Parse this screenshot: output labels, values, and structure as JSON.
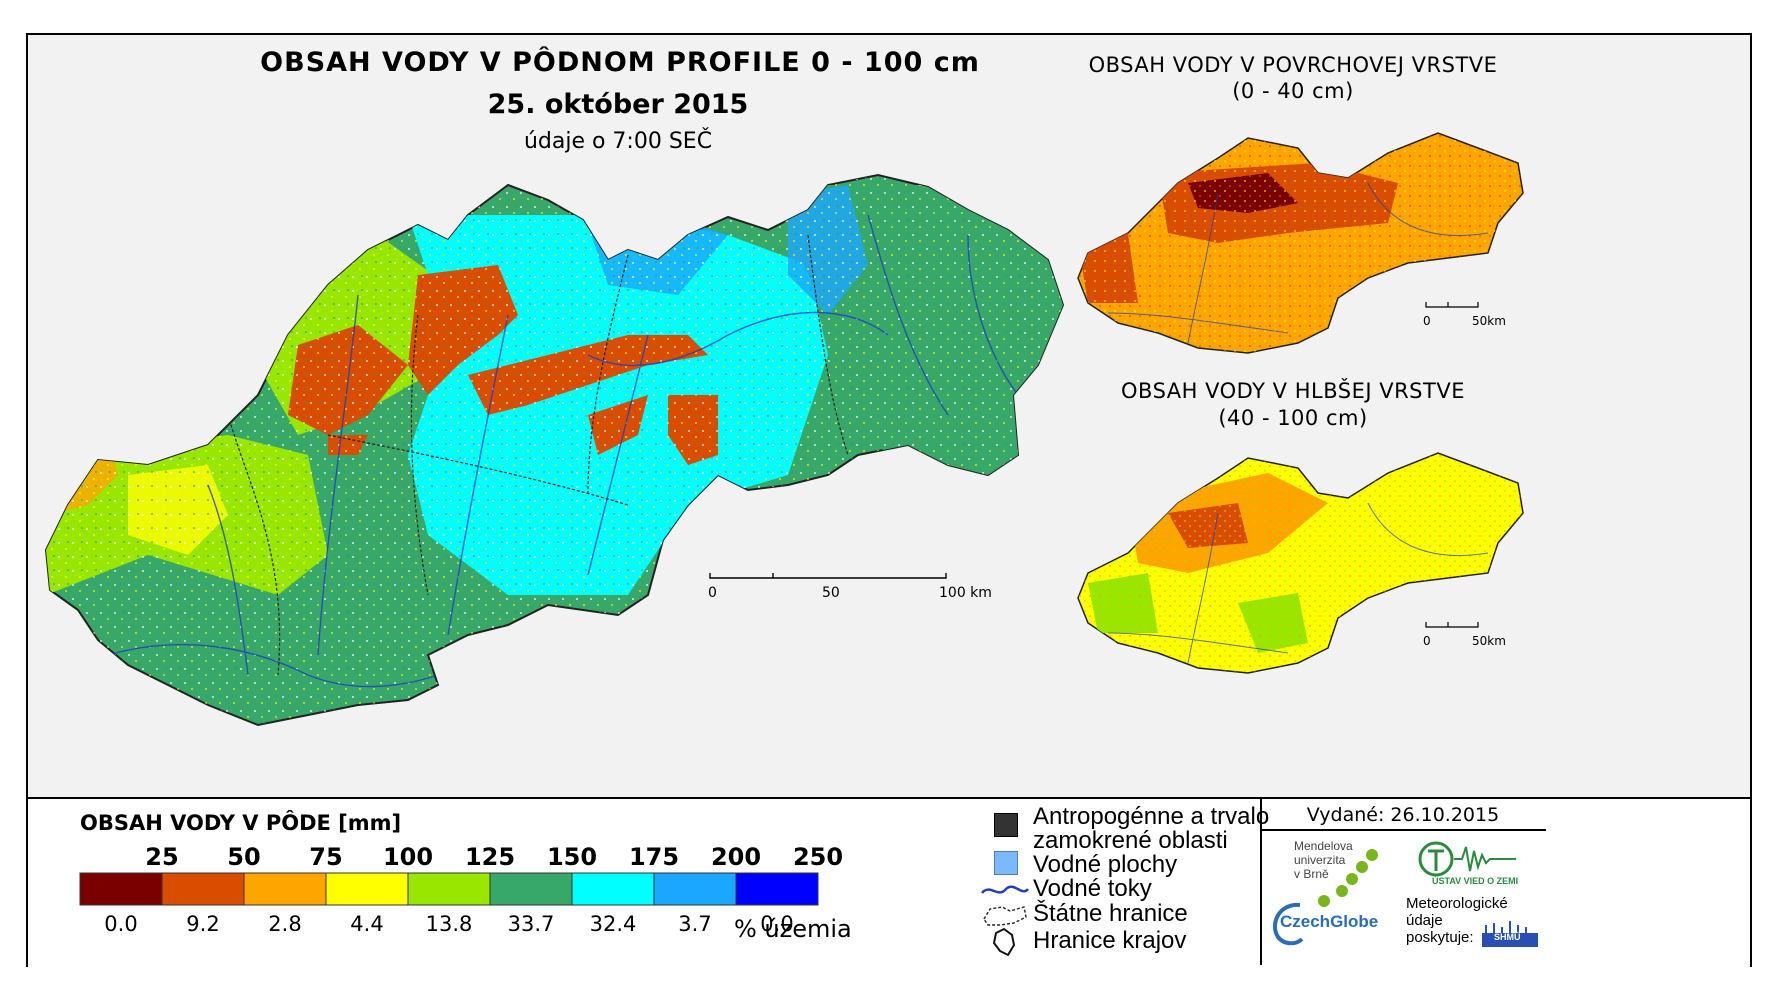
{
  "main_map": {
    "title": "OBSAH VODY V PÔDNOM PROFILE 0 - 100 cm",
    "date": "25. október 2015",
    "time_note": "údaje o 7:00 SEČ",
    "scale": {
      "zero": "0",
      "mid": "50",
      "end": "100 km"
    }
  },
  "inset_top": {
    "title_line1": "OBSAH VODY V POVRCHOVEJ VRSTVE",
    "title_line2": "(0 - 40 cm)",
    "scale": {
      "zero": "0",
      "end": "50km"
    }
  },
  "inset_bottom": {
    "title_line1": "OBSAH VODY V HLBŠEJ VRSTVE",
    "title_line2": "(40 - 100 cm)",
    "scale": {
      "zero": "0",
      "end": "50km"
    }
  },
  "chart_data": {
    "type": "choropleth-legend",
    "title": "OBSAH VODY V PÔDE [mm]",
    "class_breaks": [
      "25",
      "50",
      "75",
      "100",
      "125",
      "150",
      "175",
      "200",
      "250"
    ],
    "classes": [
      {
        "color": "#7a0000",
        "percent": "0.0"
      },
      {
        "color": "#d84d00",
        "percent": "9.2"
      },
      {
        "color": "#ffa500",
        "percent": "2.8"
      },
      {
        "color": "#ffff00",
        "percent": "4.4"
      },
      {
        "color": "#99e600",
        "percent": "13.8"
      },
      {
        "color": "#38a86a",
        "percent": "33.7"
      },
      {
        "color": "#00ffff",
        "percent": "32.4"
      },
      {
        "color": "#1ba6ff",
        "percent": "3.7"
      },
      {
        "color": "#0000ff",
        "percent": "0.0"
      }
    ],
    "unit_label": "% územia"
  },
  "map_key": {
    "anthropogenic_line1": "Antropogénne a trvalo",
    "anthropogenic_line2": "zamokrené oblasti",
    "water_bodies": "Vodné plochy",
    "rivers": "Vodné toky",
    "state_border": "Štátne hranice",
    "region_border": "Hranice krajov",
    "colors": {
      "anthropogenic": "#333333",
      "water_bodies": "#7ab8ff",
      "rivers": "#1f3fbf"
    }
  },
  "issued": "Vydané: 26.10.2015",
  "logos": {
    "mendel_line1": "Mendelova",
    "mendel_line2": "univerzita",
    "mendel_line3": "v Brně",
    "czechglobe": "CzechGlobe",
    "ustav": "ÚSTAV VIED O ZEMI",
    "meteo_line1": "Meteorologické",
    "meteo_line2": "údaje",
    "meteo_line3": "poskytuje:",
    "shmu": "SHMÚ"
  }
}
